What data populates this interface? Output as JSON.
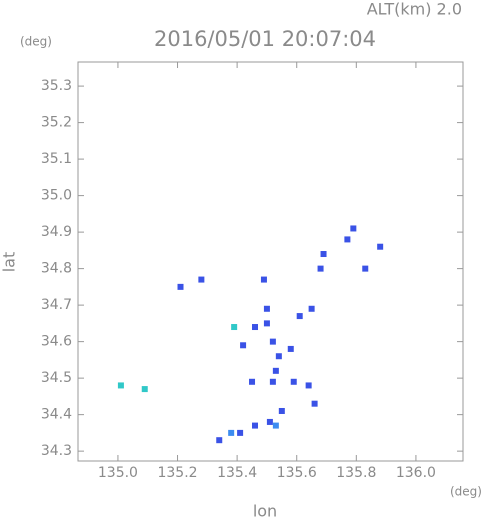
{
  "chart_data": {
    "type": "scatter",
    "title": "2016/05/01 20:07:04",
    "subtitle": "ALT(km) 2.0",
    "y_unit": "(deg)",
    "x_unit": "(deg)",
    "x_label": "lon",
    "y_label": "lat",
    "xlim": [
      134.866,
      136.158
    ],
    "ylim": [
      34.273,
      35.366
    ],
    "xticks": [
      {
        "value": 135.0,
        "label": "135.0"
      },
      135.2,
      135.4,
      135.6,
      135.8,
      {
        "value": 136.0,
        "label": "136.0"
      }
    ],
    "yticks": [
      {
        "value": 34.3,
        "label": "34.3"
      },
      34.4,
      34.5,
      34.6,
      34.7,
      34.8,
      34.9,
      {
        "value": 35.0,
        "label": "35.0"
      },
      35.1,
      35.2,
      35.3
    ],
    "series": [
      {
        "color": "#3a52e6",
        "x": [
          135.79,
          135.77,
          135.88,
          135.83,
          135.69,
          135.68,
          135.65,
          135.61,
          135.5,
          135.49,
          135.28,
          135.21,
          135.5,
          135.52,
          135.54,
          135.53,
          135.52,
          135.58,
          135.59,
          135.45,
          135.42,
          135.46,
          135.64,
          135.66,
          135.55,
          135.51,
          135.46,
          135.41,
          135.34
        ],
        "values": [
          34.91,
          34.88,
          34.86,
          34.8,
          34.84,
          34.8,
          34.69,
          34.67,
          34.69,
          34.77,
          34.77,
          34.75,
          34.65,
          34.6,
          34.56,
          34.52,
          34.49,
          34.58,
          34.49,
          34.49,
          34.59,
          34.64,
          34.48,
          34.43,
          34.41,
          34.38,
          34.37,
          34.35,
          34.33
        ]
      },
      {
        "color": "#3c8cf0",
        "x": [
          135.53,
          135.38
        ],
        "values": [
          34.37,
          34.35
        ]
      },
      {
        "color": "#30c8c8",
        "x": [
          135.39,
          135.01,
          135.09
        ],
        "values": [
          34.64,
          34.48,
          34.47
        ]
      }
    ]
  }
}
